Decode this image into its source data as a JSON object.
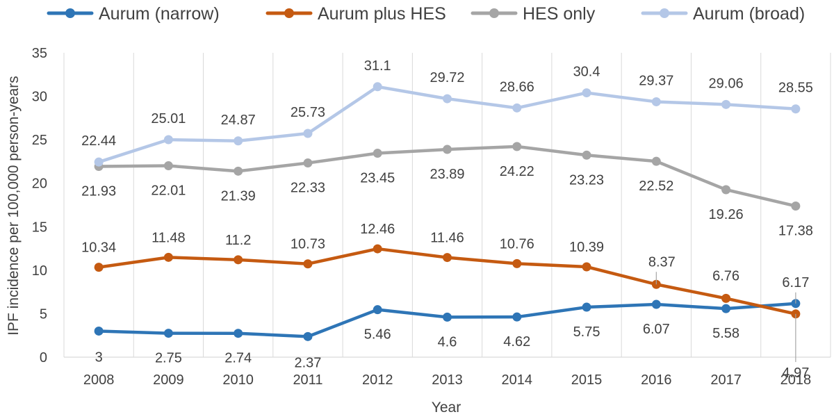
{
  "chart_data": {
    "type": "line",
    "title": "",
    "xlabel": "Year",
    "ylabel": "IPF incidence per 100,000 person-years",
    "categories": [
      "2008",
      "2009",
      "2010",
      "2011",
      "2012",
      "2013",
      "2014",
      "2015",
      "2016",
      "2017",
      "2018"
    ],
    "ylim": [
      0,
      35
    ],
    "yticks": [
      0,
      5,
      10,
      15,
      20,
      25,
      30,
      35
    ],
    "grid": "vertical",
    "legend_position": "top",
    "series": [
      {
        "name": "Aurum (narrow)",
        "color": "#2E75B6",
        "values": [
          3,
          2.75,
          2.74,
          2.37,
          5.46,
          4.6,
          4.62,
          5.75,
          6.07,
          5.58,
          6.17
        ],
        "labels": [
          "3",
          "2.75",
          "2.74",
          "2.37",
          "5.46",
          "4.6",
          "4.62",
          "5.75",
          "6.07",
          "5.58",
          "6.17"
        ]
      },
      {
        "name": "Aurum plus HES",
        "color": "#C55A11",
        "values": [
          10.34,
          11.48,
          11.2,
          10.73,
          12.46,
          11.46,
          10.76,
          10.39,
          8.37,
          6.76,
          4.97
        ],
        "labels": [
          "10.34",
          "11.48",
          "11.2",
          "10.73",
          "12.46",
          "11.46",
          "10.76",
          "10.39",
          "8.37",
          "6.76",
          "4.97"
        ]
      },
      {
        "name": "HES only",
        "color": "#A5A5A5",
        "values": [
          21.93,
          22.01,
          21.39,
          22.33,
          23.45,
          23.89,
          24.22,
          23.23,
          22.52,
          19.26,
          17.38
        ],
        "labels": [
          "21.93",
          "22.01",
          "21.39",
          "22.33",
          "23.45",
          "23.89",
          "24.22",
          "23.23",
          "22.52",
          "19.26",
          "17.38"
        ]
      },
      {
        "name": "Aurum (broad)",
        "color": "#B4C7E7",
        "values": [
          22.44,
          25.01,
          24.87,
          25.73,
          31.1,
          29.72,
          28.66,
          30.4,
          29.37,
          29.06,
          28.55
        ],
        "labels": [
          "22.44",
          "25.01",
          "24.87",
          "25.73",
          "31.1",
          "29.72",
          "28.66",
          "30.4",
          "29.37",
          "29.06",
          "28.55"
        ]
      }
    ]
  }
}
